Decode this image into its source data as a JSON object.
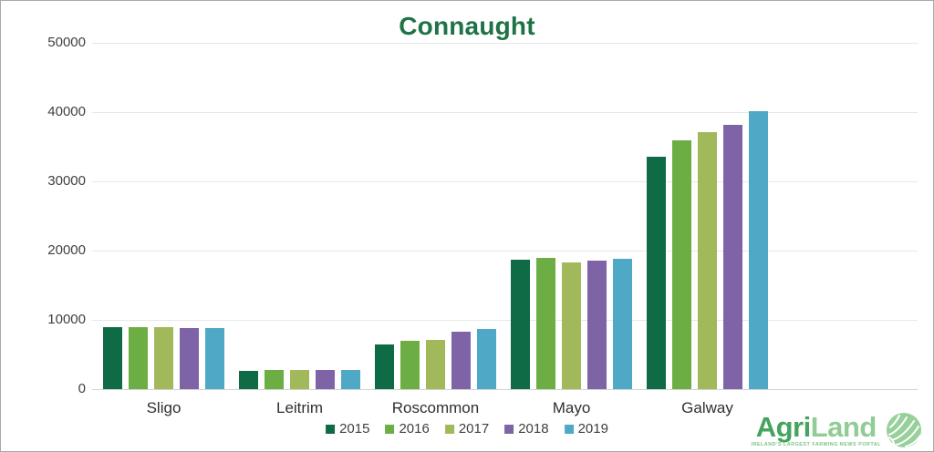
{
  "frame": {
    "title": "Connaught"
  },
  "chart_data": {
    "type": "bar",
    "title": "Connaught",
    "title_color": "#1e7346",
    "categories": [
      "Sligo",
      "Leitrim",
      "Roscommon",
      "Mayo",
      "Galway"
    ],
    "series": [
      {
        "name": "2015",
        "color": "#0e6b45",
        "values": [
          9000,
          2600,
          6500,
          18700,
          33500
        ]
      },
      {
        "name": "2016",
        "color": "#6cae44",
        "values": [
          8900,
          2700,
          7000,
          18900,
          35900
        ]
      },
      {
        "name": "2017",
        "color": "#a1b85b",
        "values": [
          8900,
          2700,
          7100,
          18300,
          37100
        ]
      },
      {
        "name": "2018",
        "color": "#7e63a7",
        "values": [
          8800,
          2700,
          8300,
          18500,
          38200
        ]
      },
      {
        "name": "2019",
        "color": "#4fa9c6",
        "values": [
          8800,
          2700,
          8700,
          18800,
          40100
        ]
      }
    ],
    "ylim": [
      0,
      50000
    ],
    "yticks": [
      0,
      10000,
      20000,
      30000,
      40000,
      50000
    ],
    "ytick_labels": [
      "0",
      "10000",
      "20000",
      "30000",
      "40000",
      "50000"
    ],
    "xlabel": "",
    "ylabel": "",
    "grid": true,
    "legend_position": "bottom"
  },
  "logo": {
    "brand_part1": "Agri",
    "brand_part2": "Land",
    "tagline": "IRELAND'S LARGEST FARMING NEWS PORTAL",
    "colors": {
      "agri": "#44a45e",
      "land": "#90cc94",
      "icon": "#98d09c"
    }
  }
}
